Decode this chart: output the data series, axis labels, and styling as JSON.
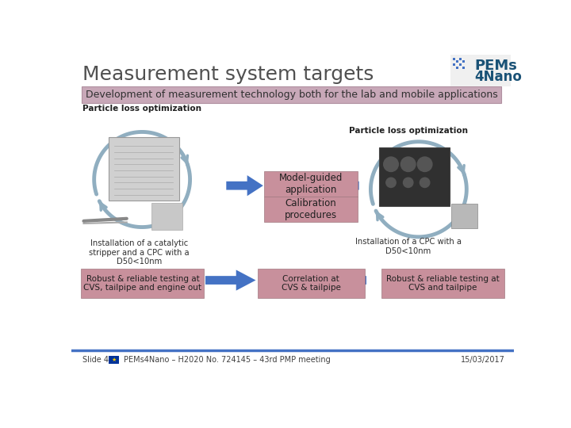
{
  "title": "Measurement system targets",
  "subtitle": "Development of measurement technology both for the lab and mobile applications",
  "bg_color": "#ffffff",
  "title_color": "#505050",
  "subtitle_bg": "#c8a8b8",
  "subtitle_text_color": "#303030",
  "pink_box_color": "#c8909c",
  "blue_arrow_color": "#4472c4",
  "gray_arrow_color": "#90aec0",
  "footer_line_color": "#4472c4",
  "footer_text": "PEMs4Nano – H2020 No. 724145 – 43rd PMP meeting",
  "footer_slide": "Slide 4",
  "footer_date": "15/03/2017",
  "left_title": "Particle loss optimization",
  "right_title": "Particle loss optimization",
  "left_caption": "Installation of a catalytic\nstripper and a CPC with a\nD50<10nm",
  "right_caption": "Installation of a CPC with a\nD50<10nm",
  "center_box1": "Model-guided\napplication",
  "center_box2": "Calibration\nprocedures",
  "bottom_left": "Robust & reliable testing at\nCVS, tailpipe and engine out",
  "bottom_center": "Correlation at\nCVS & tailpipe",
  "bottom_right": "Robust & reliable testing at\nCVS and tailpipe"
}
